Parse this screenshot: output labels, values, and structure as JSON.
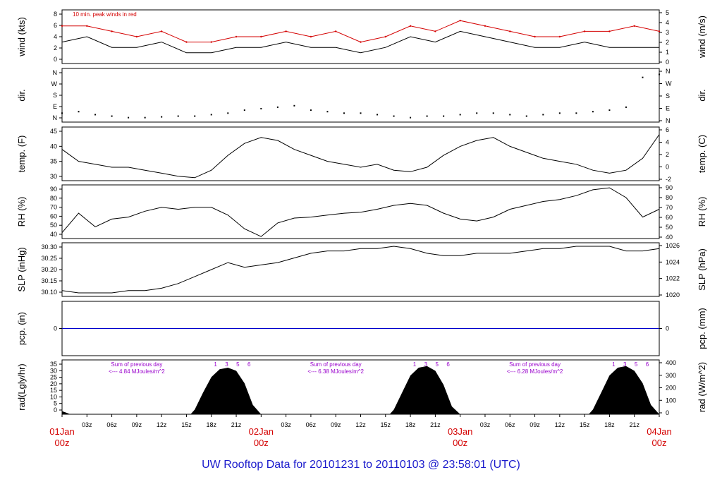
{
  "footer_title": "UW Rooftop Data for 20101231  to  20110103 @ 23:58:01  (UTC)",
  "colors": {
    "axis": "#000000",
    "peak": "#d40000",
    "precip": "#0000cc",
    "note": "#9900cc",
    "day_label": "#d40000",
    "footer": "#1a1acc"
  },
  "x_axis": {
    "days": [
      {
        "label": "01Jan",
        "sub": "00z",
        "hour": 0
      },
      {
        "label": "02Jan",
        "sub": "00z",
        "hour": 24
      },
      {
        "label": "03Jan",
        "sub": "00z",
        "hour": 48
      },
      {
        "label": "04Jan",
        "sub": "00z",
        "hour": 72
      }
    ],
    "hour_labels": [
      "03z",
      "06z",
      "09z",
      "12z",
      "15z",
      "18z",
      "21z"
    ],
    "range_hours": [
      0,
      72
    ]
  },
  "chart_data": [
    {
      "id": "wind",
      "type": "line",
      "ylabel_left": "wind (kts)",
      "ylabel_right": "wind (m/s)",
      "yticks_left": [
        "0",
        "2",
        "4",
        "6",
        "8"
      ],
      "yticks_right": [
        "0",
        "1",
        "2",
        "3",
        "4",
        "5"
      ],
      "ylim": [
        0,
        10
      ],
      "annotation": "10 min. peak winds in red",
      "series": [
        {
          "name": "wind speed",
          "x": [
            0,
            3,
            6,
            9,
            12,
            15,
            18,
            21,
            24,
            27,
            30,
            33,
            36,
            39,
            42,
            45,
            48,
            51,
            54,
            57,
            60,
            63,
            66,
            69,
            72
          ],
          "y": [
            4,
            5,
            3,
            3,
            4,
            2,
            2,
            3,
            3,
            4,
            3,
            3,
            2,
            3,
            5,
            4,
            6,
            5,
            4,
            3,
            3,
            4,
            3,
            3,
            3
          ]
        },
        {
          "name": "peak",
          "x": [
            0,
            3,
            6,
            9,
            12,
            15,
            18,
            21,
            24,
            27,
            30,
            33,
            36,
            39,
            42,
            45,
            48,
            51,
            54,
            57,
            60,
            63,
            66,
            69,
            72
          ],
          "y": [
            7,
            7,
            6,
            5,
            6,
            4,
            4,
            5,
            5,
            6,
            5,
            6,
            4,
            5,
            7,
            6,
            8,
            7,
            6,
            5,
            5,
            6,
            6,
            7,
            6
          ]
        }
      ]
    },
    {
      "id": "dir",
      "type": "scatter",
      "ylabel_left": "dir.",
      "ylabel_right": "dir.",
      "yticks_left": [
        "N",
        "E",
        "S",
        "W",
        "N"
      ],
      "yticks_right": [
        "N",
        "E",
        "S",
        "W",
        "N"
      ],
      "ylim": [
        0,
        360
      ],
      "series": [
        {
          "name": "direction",
          "x": [
            0,
            2,
            4,
            6,
            8,
            10,
            12,
            14,
            16,
            18,
            20,
            22,
            24,
            26,
            28,
            30,
            32,
            34,
            36,
            38,
            40,
            42,
            44,
            46,
            48,
            50,
            52,
            54,
            56,
            58,
            60,
            62,
            64,
            66,
            68,
            70,
            72
          ],
          "y": [
            60,
            70,
            50,
            40,
            30,
            30,
            35,
            40,
            40,
            50,
            60,
            80,
            90,
            100,
            110,
            80,
            70,
            60,
            60,
            50,
            40,
            30,
            40,
            40,
            50,
            60,
            60,
            50,
            40,
            50,
            60,
            60,
            70,
            80,
            100,
            300,
            320
          ]
        }
      ]
    },
    {
      "id": "temp",
      "type": "line",
      "ylabel_left": "temp. (F)",
      "ylabel_right": "temp. (C)",
      "yticks_left": [
        "30",
        "35",
        "40",
        "45"
      ],
      "yticks_right": [
        "-2",
        "0",
        "2",
        "4",
        "6"
      ],
      "ylim": [
        28.5,
        46.5
      ],
      "series": [
        {
          "name": "temperature",
          "x": [
            0,
            2,
            4,
            6,
            8,
            10,
            12,
            14,
            16,
            18,
            20,
            22,
            24,
            26,
            28,
            30,
            32,
            34,
            36,
            38,
            40,
            42,
            44,
            46,
            48,
            50,
            52,
            54,
            56,
            58,
            60,
            62,
            64,
            66,
            68,
            70,
            72
          ],
          "y": [
            39,
            35,
            34,
            33,
            33,
            32,
            31,
            30,
            29.5,
            32,
            37,
            41,
            43,
            42,
            39,
            37,
            35,
            34,
            33,
            34,
            32,
            31.5,
            33,
            37,
            40,
            42,
            43,
            40,
            38,
            36,
            35,
            34,
            32,
            31,
            32,
            36,
            44
          ]
        }
      ]
    },
    {
      "id": "rh",
      "type": "line",
      "ylabel_left": "RH (%)",
      "ylabel_right": "RH (%)",
      "yticks_left": [
        "40",
        "50",
        "60",
        "70",
        "80",
        "90"
      ],
      "yticks_right": [
        "40",
        "50",
        "60",
        "70",
        "80",
        "90"
      ],
      "ylim": [
        36,
        91
      ],
      "series": [
        {
          "name": "relative humidity",
          "x": [
            0,
            2,
            4,
            6,
            8,
            10,
            12,
            14,
            16,
            18,
            20,
            22,
            24,
            26,
            28,
            30,
            32,
            34,
            36,
            38,
            40,
            42,
            44,
            46,
            48,
            50,
            52,
            54,
            56,
            58,
            60,
            62,
            64,
            66,
            68,
            70,
            72
          ],
          "y": [
            42,
            62,
            48,
            56,
            58,
            64,
            68,
            66,
            68,
            68,
            60,
            46,
            38,
            52,
            57,
            58,
            60,
            62,
            63,
            66,
            70,
            72,
            70,
            62,
            56,
            54,
            58,
            66,
            70,
            74,
            76,
            80,
            86,
            88,
            78,
            58,
            66
          ]
        }
      ]
    },
    {
      "id": "slp",
      "type": "line",
      "ylabel_left": "SLP (inHg)",
      "ylabel_right": "SLP (hPa)",
      "yticks_left": [
        "30.10",
        "30.15",
        "30.20",
        "30.25",
        "30.30"
      ],
      "yticks_right": [
        "1020",
        "1022",
        "1024",
        "1026"
      ],
      "ylim": [
        30.075,
        30.305
      ],
      "series": [
        {
          "name": "sea level pressure",
          "x": [
            0,
            2,
            4,
            6,
            8,
            10,
            12,
            14,
            16,
            18,
            20,
            22,
            24,
            26,
            28,
            30,
            32,
            34,
            36,
            38,
            40,
            42,
            44,
            46,
            48,
            50,
            52,
            54,
            56,
            58,
            60,
            62,
            64,
            66,
            68,
            70,
            72
          ],
          "y": [
            30.1,
            30.09,
            30.09,
            30.09,
            30.1,
            30.1,
            30.11,
            30.13,
            30.16,
            30.19,
            30.22,
            30.2,
            30.21,
            30.22,
            30.24,
            30.26,
            30.27,
            30.27,
            30.28,
            30.28,
            30.29,
            30.28,
            30.26,
            30.25,
            30.25,
            30.26,
            30.26,
            30.26,
            30.27,
            30.28,
            30.28,
            30.29,
            30.29,
            30.29,
            30.27,
            30.27,
            30.28
          ]
        }
      ]
    },
    {
      "id": "pcp",
      "type": "line",
      "ylabel_left": "pcp. (in)",
      "ylabel_right": "pcp. (mm)",
      "yticks_left": [
        "0"
      ],
      "yticks_right": [
        "0"
      ],
      "ylim": [
        -1,
        1
      ],
      "series": [
        {
          "name": "precipitation",
          "x": [
            0,
            72
          ],
          "y": [
            0,
            0
          ]
        }
      ]
    },
    {
      "id": "rad",
      "type": "area",
      "ylabel_left": "rad(Lgly/hr)",
      "ylabel_right": "rad (W/m^2)",
      "yticks_left": [
        "0",
        "5",
        "10",
        "15",
        "20",
        "25",
        "30",
        "35"
      ],
      "yticks_right": [
        "0",
        "100",
        "200",
        "300",
        "400"
      ],
      "ylim": [
        0,
        35
      ],
      "annotations": [
        {
          "text1": "Sum of previous day",
          "text2": "<--- 4.84 MJoules/m^2"
        },
        {
          "text1": "Sum of previous day",
          "text2": "<--- 6.38 MJoules/m^2"
        },
        {
          "text1": "Sum of previous day",
          "text2": "<--- 6.28 MJoules/m^2"
        }
      ],
      "sun_marks": [
        "1",
        "3",
        "5",
        "6"
      ],
      "series": [
        {
          "name": "solar radiation",
          "x": [
            0,
            0.5,
            1,
            15.5,
            16,
            17,
            18,
            19,
            20,
            21,
            22,
            23,
            24,
            39.5,
            40,
            41,
            42,
            43,
            44,
            45,
            46,
            47,
            48,
            63.5,
            64,
            65,
            66,
            67,
            68,
            69,
            70,
            71,
            72
          ],
          "y": [
            2,
            1,
            0,
            0,
            3,
            14,
            24,
            29,
            30,
            28,
            20,
            6,
            0,
            0,
            3,
            14,
            25,
            30,
            31,
            28,
            19,
            5,
            0,
            0,
            3,
            14,
            25,
            30,
            31,
            28,
            20,
            6,
            0
          ]
        }
      ]
    }
  ]
}
